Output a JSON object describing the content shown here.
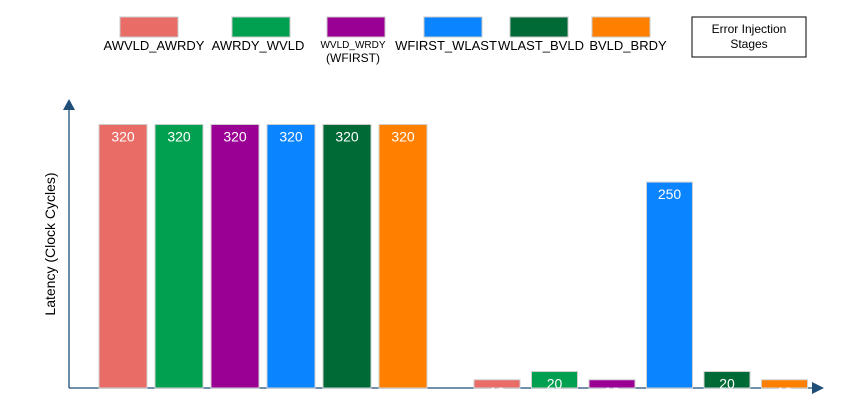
{
  "chart_data": {
    "type": "bar",
    "title": "",
    "xlabel": "",
    "ylabel": "Latency  (Clock Cycles)",
    "ylim": [
      0,
      340
    ],
    "grid": false,
    "legend_title": "Error Injection Stages",
    "groups": [
      "",
      ""
    ],
    "series": [
      {
        "name": "AWVLD_AWRDY",
        "values": [
          320,
          10
        ],
        "color": "#E96C66"
      },
      {
        "name": "AWRDY_WVLD",
        "values": [
          320,
          20
        ],
        "color": "#00A050"
      },
      {
        "name": "WVLD_WRDY",
        "subname": "(WFIRST)",
        "values": [
          320,
          10
        ],
        "color": "#9B0095"
      },
      {
        "name": "WFIRST_WLAST",
        "values": [
          320,
          250
        ],
        "color": "#0A84FF"
      },
      {
        "name": "WLAST_BVLD",
        "values": [
          320,
          20
        ],
        "color": "#006A36"
      },
      {
        "name": "BVLD_BRDY",
        "values": [
          320,
          10
        ],
        "color": "#FF8000"
      }
    ]
  }
}
